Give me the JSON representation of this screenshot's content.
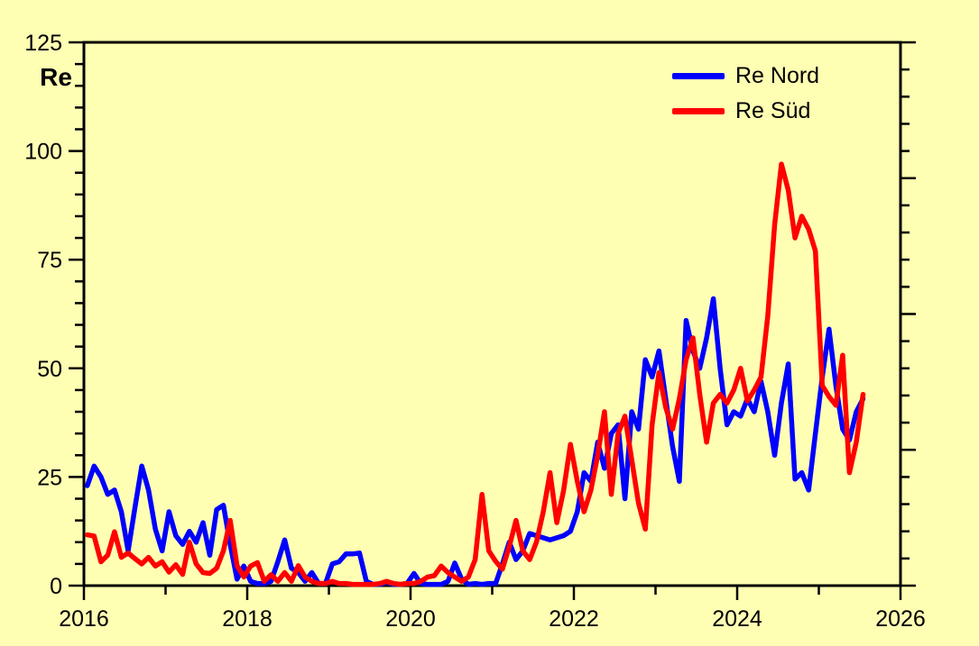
{
  "chart_data": {
    "type": "line",
    "title": "",
    "y_axis_label": "Re",
    "xlim": [
      2016,
      2026
    ],
    "ylim": [
      0,
      125
    ],
    "x_tick_labels": [
      "2016",
      "2018",
      "2020",
      "2022",
      "2024",
      "2026"
    ],
    "x_label_years": [
      2016,
      2018,
      2020,
      2022,
      2024,
      2026
    ],
    "x_minor_step_years": 1,
    "y_tick_values": [
      0,
      25,
      50,
      75,
      100,
      125
    ],
    "y_major_step": 25,
    "y_minor_step": 5,
    "right_axis_divisions": 20,
    "right_axis_major_every": 5,
    "grid": false,
    "legend_position": "top-right",
    "x_start_year": 2016,
    "points_per_year": 12,
    "x_unit": "month",
    "series": [
      {
        "name": "Re Nord",
        "color": "#0000ff",
        "values": [
          23,
          27.5,
          25,
          21,
          22,
          17,
          8,
          18,
          27.5,
          22,
          13,
          8,
          17,
          11.5,
          9.5,
          12.5,
          10,
          14.5,
          7,
          17.5,
          18.5,
          9.5,
          1.5,
          4.5,
          1,
          0.5,
          0.5,
          1,
          5.5,
          10.5,
          4,
          3,
          1,
          3,
          0.5,
          0.5,
          5,
          5.5,
          7.3,
          7.3,
          7.5,
          1,
          0.3,
          0.3,
          0.8,
          0.3,
          0.3,
          0.5,
          2.8,
          0.5,
          0.3,
          0.3,
          0.3,
          1,
          5.2,
          1.5,
          0.3,
          0.5,
          0.3,
          0.5,
          0.5,
          5,
          10,
          6,
          8,
          12,
          11.5,
          11,
          10.5,
          11,
          11.5,
          12.5,
          17,
          26,
          24,
          33,
          27,
          35,
          37,
          20,
          40,
          36,
          52,
          48,
          54,
          43,
          32,
          24,
          61,
          54,
          50,
          57,
          66,
          50,
          37,
          40,
          39,
          43,
          40,
          47,
          40,
          30,
          42,
          51,
          24.5,
          26,
          22,
          35,
          48,
          59,
          46,
          36,
          33.5,
          40,
          43
        ]
      },
      {
        "name": "Re Süd",
        "color": "#ff0000",
        "values": [
          11.7,
          11.4,
          5.5,
          7,
          12.4,
          6.5,
          7.5,
          6.2,
          5,
          6.5,
          4.5,
          5.5,
          3.1,
          4.8,
          2.6,
          10,
          5,
          3,
          2.8,
          4,
          8,
          15,
          4.6,
          2,
          4.5,
          5.3,
          1,
          2.5,
          1,
          3,
          1,
          4.6,
          2,
          1,
          0.5,
          0.5,
          1,
          0.5,
          0.5,
          0.3,
          0.3,
          0.3,
          0.3,
          0.5,
          1,
          0.5,
          0.3,
          0.5,
          0.5,
          1,
          2,
          2.3,
          4.5,
          3,
          2,
          1,
          2,
          6,
          21,
          8,
          5.6,
          3.8,
          9,
          15,
          8,
          6,
          10,
          17,
          26,
          14.5,
          22,
          32.5,
          24,
          17,
          22,
          30,
          40,
          21,
          35,
          39,
          29,
          19,
          13,
          37,
          49,
          41,
          36,
          43,
          52,
          57,
          44,
          33,
          42,
          44,
          42,
          45,
          50,
          42.5,
          45,
          48,
          62,
          83,
          97,
          91,
          80,
          85,
          82,
          77,
          46,
          43.5,
          41.5,
          53,
          26,
          33,
          44
        ]
      }
    ]
  },
  "colors": {
    "background": "#ffffb3",
    "axis": "#000000",
    "nord_line": "#0000ff",
    "sued_line": "#ff0000"
  }
}
